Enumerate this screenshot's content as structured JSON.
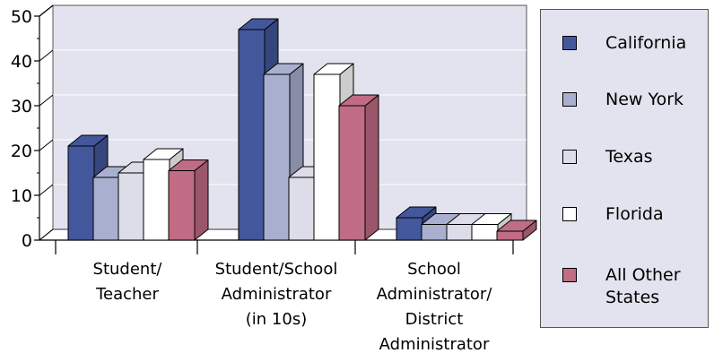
{
  "chart_data": {
    "type": "bar",
    "y_ticks": [
      "0",
      "10",
      "20",
      "30",
      "40",
      "50"
    ],
    "ylim": [
      0,
      50
    ],
    "grid": true,
    "legend_position": "right",
    "categories": [
      [
        "Student/",
        "Teacher"
      ],
      [
        "Student/School",
        "Administrator",
        "(in 10s)"
      ],
      [
        "School",
        "Administrator/",
        "District",
        "Administrator"
      ]
    ],
    "series": [
      {
        "name": "California",
        "color": "#43589c",
        "values": [
          21,
          47,
          5
        ]
      },
      {
        "name": "New York",
        "color": "#a9b0cf",
        "values": [
          14,
          37,
          3.5
        ]
      },
      {
        "name": "Texas",
        "color": "#dcdde8",
        "values": [
          15,
          14,
          3.5
        ]
      },
      {
        "name": "Florida",
        "color": "#ffffff",
        "values": [
          18,
          37,
          3.5
        ]
      },
      {
        "name": "All Other States",
        "color": "#c06c84",
        "values": [
          15.5,
          30,
          2
        ]
      }
    ]
  },
  "legend": [
    {
      "label": "California",
      "color": "#43589c"
    },
    {
      "label": "New York",
      "color": "#a9b0cf"
    },
    {
      "label": "Texas",
      "color": "#dcdde8"
    },
    {
      "label": "Florida",
      "color": "#ffffff"
    },
    {
      "label": "All Other States",
      "color": "#c06c84"
    }
  ]
}
